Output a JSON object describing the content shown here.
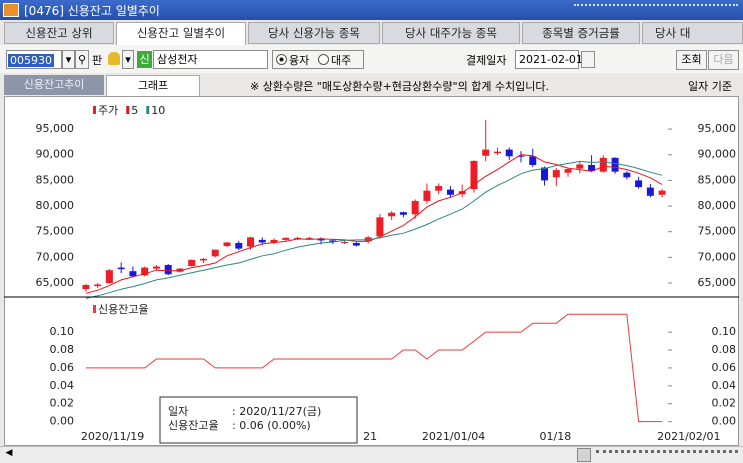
{
  "window": {
    "title": "[0476] 신용잔고 일별추이"
  },
  "tabs": [
    "신용잔고 상위",
    "신용잔고 일별추이",
    "당사 신용가능 종목",
    "당사 대주가능 종목",
    "종목별 증거금률",
    "당사 대"
  ],
  "controls": {
    "code": "005930",
    "pan": "판",
    "sin": "신",
    "stock": "삼성전자",
    "radio": [
      "융자",
      "대주"
    ],
    "date_label": "결제일자",
    "date": "2021-02-01",
    "search": "조회",
    "next": "다음"
  },
  "subtabs": [
    "신용잔고추이",
    "그래프"
  ],
  "notice": "※ 상환수량은 \"매도상환수량+현금상환수량\"의 합계 수치입니다.",
  "basis": "일자 기준",
  "tooltip": {
    "rows": [
      [
        "일자",
        ": 2020/11/27(금)"
      ],
      [
        "신용잔고율",
        ": 0.06 (0.00%)"
      ]
    ]
  },
  "chart_data": [
    {
      "type": "candlestick",
      "ylim": [
        62270,
        100670
      ],
      "yticks": [
        {
          "value": 65000,
          "label": "65,000"
        },
        {
          "value": 70000,
          "label": "70,000"
        },
        {
          "value": 75000,
          "label": "75,000"
        },
        {
          "value": 80000,
          "label": "80,000"
        },
        {
          "value": 85000,
          "label": "85,000"
        },
        {
          "value": 90000,
          "label": "90,000"
        },
        {
          "value": 95000,
          "label": "95,000"
        }
      ],
      "series": [
        {
          "name": "주가",
          "color": "#ee1c25",
          "down_color": "#1818d8",
          "open": [
            63800,
            64400,
            65000,
            68000,
            67300,
            66500,
            67800,
            68500,
            67200,
            68300,
            69400,
            70200,
            72200,
            72800,
            72100,
            73400,
            72900,
            73400,
            73600,
            73800,
            73700,
            73300,
            72900,
            72800,
            73100,
            74100,
            78000,
            78800,
            78400,
            81000,
            83000,
            83200,
            82300,
            83300,
            89800,
            90300,
            91000,
            89800,
            89700,
            87500,
            85600,
            86500,
            87300,
            88000,
            86700,
            89400,
            86500,
            85000,
            83600,
            82200
          ],
          "high": [
            64800,
            65000,
            67700,
            69000,
            68200,
            68200,
            68500,
            68700,
            67900,
            69600,
            69900,
            71500,
            73000,
            73200,
            74000,
            73900,
            73700,
            73900,
            74000,
            74000,
            73900,
            73600,
            73300,
            73000,
            74200,
            78400,
            79000,
            78900,
            81300,
            84400,
            84400,
            83900,
            84200,
            88900,
            96800,
            91400,
            91400,
            90700,
            91200,
            87700,
            87400,
            87400,
            88700,
            89900,
            89900,
            89500,
            86800,
            85700,
            84300,
            83300
          ],
          "low": [
            63300,
            64000,
            64900,
            66900,
            66200,
            66300,
            67500,
            66500,
            67000,
            68200,
            68900,
            70000,
            72000,
            71400,
            71500,
            72400,
            72600,
            73200,
            73400,
            73400,
            72500,
            72600,
            72600,
            72100,
            72700,
            73700,
            77300,
            77800,
            77500,
            80500,
            82300,
            81600,
            81700,
            82600,
            88700,
            89900,
            89000,
            88500,
            87600,
            84000,
            83900,
            85700,
            86400,
            86600,
            86500,
            86300,
            85200,
            83400,
            81700,
            81700
          ],
          "close": [
            64600,
            64700,
            67500,
            67700,
            66300,
            68000,
            68200,
            66700,
            67800,
            69500,
            69700,
            71500,
            72900,
            71700,
            73900,
            72900,
            73400,
            73800,
            73800,
            73800,
            73300,
            73000,
            73000,
            72300,
            73900,
            77800,
            78700,
            78300,
            81000,
            83000,
            83900,
            82200,
            82900,
            88800,
            91000,
            90600,
            89700,
            89700,
            88000,
            85000,
            87000,
            87200,
            88100,
            86800,
            89400,
            86700,
            85600,
            83700,
            82000,
            83000
          ]
        },
        {
          "name": "5",
          "color": "#e8141b",
          "values": [
            63000,
            63600,
            64500,
            65600,
            66200,
            66800,
            67500,
            67400,
            67400,
            68000,
            68400,
            68900,
            70300,
            71100,
            71900,
            72600,
            72900,
            73100,
            73600,
            73500,
            73600,
            73500,
            73400,
            73100,
            73100,
            74000,
            75100,
            76200,
            77900,
            79800,
            81000,
            81700,
            82600,
            84200,
            85800,
            87100,
            88600,
            90000,
            89800,
            88600,
            88100,
            87400,
            87100,
            86800,
            87700,
            87600,
            87100,
            86400,
            85500,
            84200
          ]
        },
        {
          "name": "10",
          "color": "#2a8a7e",
          "values": [
            62000,
            62500,
            63100,
            63800,
            64300,
            64900,
            65600,
            66000,
            66500,
            67000,
            67500,
            68000,
            68500,
            68900,
            69600,
            70300,
            70700,
            71400,
            72000,
            72400,
            72800,
            73000,
            73300,
            73400,
            73400,
            73800,
            74300,
            74700,
            75500,
            76400,
            77500,
            78400,
            79400,
            81000,
            82700,
            84000,
            85100,
            86300,
            87000,
            87300,
            87900,
            88300,
            88700,
            88500,
            88600,
            88300,
            87900,
            87300,
            86600,
            86000
          ]
        }
      ]
    },
    {
      "type": "line",
      "ylim": [
        -0.0205,
        0.137
      ],
      "yticks": [
        {
          "value": 0,
          "label": "0.00"
        },
        {
          "value": 0.02,
          "label": "0.02"
        },
        {
          "value": 0.04,
          "label": "0.04"
        },
        {
          "value": 0.06,
          "label": "0.06"
        },
        {
          "value": 0.08,
          "label": "0.08"
        },
        {
          "value": 0.1,
          "label": "0.10"
        }
      ],
      "categories": [
        "2020/11/19",
        null,
        null,
        null,
        null,
        null,
        null,
        null,
        null,
        null,
        null,
        null,
        null,
        null,
        null,
        null,
        null,
        null,
        null,
        null,
        null,
        null,
        null,
        null,
        "21",
        null,
        null,
        null,
        null,
        "2021/01/04",
        null,
        null,
        null,
        null,
        null,
        null,
        null,
        null,
        null,
        "01/18",
        null,
        null,
        null,
        null,
        null,
        null,
        null,
        null,
        null,
        "2021/02/01"
      ],
      "series": [
        {
          "name": "신용잔고율",
          "color": "#ee3a3a",
          "values": [
            0.06,
            0.06,
            0.06,
            0.06,
            0.06,
            0.06,
            0.07,
            0.07,
            0.07,
            0.07,
            0.07,
            0.06,
            0.06,
            0.06,
            0.06,
            0.06,
            0.07,
            0.07,
            0.07,
            0.07,
            0.07,
            0.07,
            0.07,
            0.07,
            0.07,
            0.07,
            0.07,
            0.08,
            0.08,
            0.07,
            0.08,
            0.08,
            0.08,
            0.09,
            0.1,
            0.1,
            0.1,
            0.1,
            0.11,
            0.11,
            0.11,
            0.12,
            0.12,
            0.12,
            0.12,
            0.12,
            0.12,
            0,
            0,
            0
          ]
        }
      ]
    }
  ]
}
